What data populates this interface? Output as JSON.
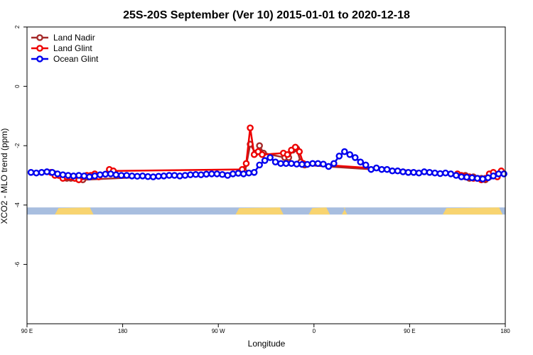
{
  "chart_data": {
    "type": "line",
    "title": "25S-20S September (Ver 10)   2015-01-01 to 2020-12-18",
    "xlabel": "Longitude",
    "ylabel": "XCO2 - MLO trend (ppm)",
    "xlim": [
      90,
      450
    ],
    "ylim": [
      -8,
      2
    ],
    "x_ticks": [
      {
        "value": 90,
        "label": "90 E"
      },
      {
        "value": 162,
        "label": "180"
      },
      {
        "value": 234,
        "label": "90 W"
      },
      {
        "value": 306,
        "label": "0"
      },
      {
        "value": 378,
        "label": "90 E"
      },
      {
        "value": 450,
        "label": "180"
      }
    ],
    "y_ticks": [
      {
        "value": 2,
        "label": "2"
      },
      {
        "value": 0,
        "label": "0"
      },
      {
        "value": -2,
        "label": "-2"
      },
      {
        "value": -4,
        "label": "-4"
      },
      {
        "value": -6,
        "label": "-6"
      }
    ],
    "legend_position": "top-left",
    "grid": false,
    "land_band": {
      "y_center": -4.2,
      "colors": {
        "ocean": "#a8bedf",
        "land": "#f8d470"
      },
      "land_segments": [
        [
          111,
          140
        ],
        [
          247,
          283
        ],
        [
          302,
          318
        ],
        [
          327,
          331
        ],
        [
          403,
          448
        ]
      ]
    },
    "series": [
      {
        "name": "Land Nadir",
        "color": "#a52a2a",
        "x": [
          111,
          114,
          117,
          120,
          123,
          126,
          129,
          132,
          254,
          258,
          262,
          265,
          268,
          284,
          287,
          290,
          293,
          296,
          299,
          420,
          423,
          426,
          429,
          432,
          435,
          438
        ],
        "y": [
          -2.95,
          -3.0,
          -3.05,
          -3.1,
          -3.1,
          -3.1,
          -3.1,
          -3.15,
          -2.9,
          -1.95,
          -2.25,
          -2.0,
          -2.25,
          -2.4,
          -2.4,
          -2.15,
          -2.1,
          -2.55,
          -2.65,
          -3.0,
          -3.1,
          -3.05,
          -3.1,
          -3.1,
          -3.15,
          -3.05
        ]
      },
      {
        "name": "Land Glint",
        "color": "#ee0000",
        "x": [
          108,
          111,
          114,
          117,
          120,
          123,
          126,
          129,
          132,
          135,
          138,
          141,
          144,
          152,
          155,
          252,
          255,
          258,
          261,
          264,
          267,
          283,
          286,
          289,
          292,
          295,
          298,
          414,
          417,
          420,
          423,
          426,
          429,
          432,
          435,
          438,
          441,
          444,
          447
        ],
        "y": [
          -2.9,
          -3.0,
          -3.0,
          -3.1,
          -3.05,
          -3.05,
          -3.1,
          -3.15,
          -3.05,
          -3.0,
          -3.0,
          -2.95,
          -3.05,
          -2.8,
          -2.85,
          -2.8,
          -2.6,
          -1.4,
          -2.3,
          -2.2,
          -2.3,
          -2.25,
          -2.3,
          -2.15,
          -2.05,
          -2.2,
          -2.6,
          -2.95,
          -3.0,
          -3.05,
          -3.05,
          -3.1,
          -3.1,
          -3.15,
          -3.1,
          -2.95,
          -2.9,
          -3.05,
          -2.85
        ]
      },
      {
        "name": "Ocean Glint",
        "color": "#0000ee",
        "x": [
          93,
          97,
          101,
          105,
          109,
          113,
          117,
          121,
          125,
          129,
          133,
          137,
          141,
          145,
          149,
          153,
          157,
          161,
          165,
          169,
          173,
          177,
          181,
          185,
          189,
          193,
          197,
          201,
          205,
          209,
          213,
          217,
          221,
          225,
          229,
          233,
          237,
          241,
          245,
          249,
          253,
          257,
          261,
          265,
          269,
          273,
          277,
          281,
          285,
          289,
          293,
          297,
          301,
          305,
          309,
          313,
          317,
          321,
          325,
          329,
          333,
          337,
          341,
          345,
          349,
          353,
          357,
          361,
          365,
          369,
          373,
          377,
          381,
          385,
          389,
          393,
          397,
          401,
          405,
          409,
          413,
          417,
          421,
          425,
          429,
          433,
          437,
          441,
          445,
          449
        ],
        "y": [
          -2.9,
          -2.92,
          -2.9,
          -2.88,
          -2.9,
          -2.95,
          -2.98,
          -3.0,
          -3.02,
          -3.0,
          -3.02,
          -3.05,
          -3.02,
          -2.98,
          -2.96,
          -2.95,
          -2.98,
          -3.0,
          -3.0,
          -3.02,
          -3.03,
          -3.02,
          -3.04,
          -3.05,
          -3.03,
          -3.02,
          -3.0,
          -3.0,
          -3.02,
          -3.0,
          -2.98,
          -2.97,
          -2.98,
          -2.96,
          -2.95,
          -2.95,
          -2.97,
          -3.0,
          -2.95,
          -2.93,
          -2.95,
          -2.92,
          -2.9,
          -2.65,
          -2.5,
          -2.4,
          -2.55,
          -2.6,
          -2.6,
          -2.6,
          -2.62,
          -2.63,
          -2.63,
          -2.6,
          -2.6,
          -2.62,
          -2.7,
          -2.6,
          -2.35,
          -2.2,
          -2.3,
          -2.4,
          -2.55,
          -2.65,
          -2.8,
          -2.75,
          -2.8,
          -2.8,
          -2.85,
          -2.85,
          -2.88,
          -2.9,
          -2.9,
          -2.92,
          -2.88,
          -2.9,
          -2.92,
          -2.94,
          -2.92,
          -2.95,
          -3.0,
          -3.05,
          -3.06,
          -3.08,
          -3.1,
          -3.12,
          -3.08,
          -3.02,
          -2.95,
          -2.95
        ]
      }
    ]
  }
}
